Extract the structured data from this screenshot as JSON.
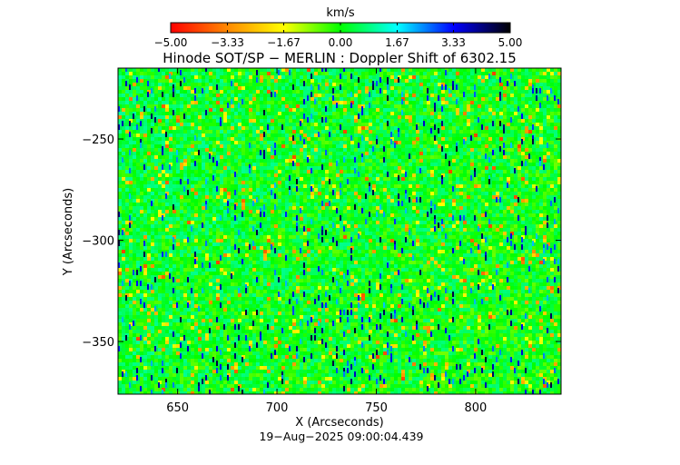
{
  "chart_data": {
    "type": "heatmap",
    "title": "Hinode SOT/SP − MERLIN : Doppler Shift of 6302.15",
    "xlabel": "X (Arcseconds)",
    "ylabel": "Y (Arcseconds)",
    "xlim": [
      620,
      843
    ],
    "ylim": [
      -376,
      -215
    ],
    "x_ticks": [
      650,
      700,
      750,
      800
    ],
    "x_tick_labels": [
      "650",
      "700",
      "750",
      "800"
    ],
    "y_ticks": [
      -250,
      -300,
      -350
    ],
    "y_tick_labels": [
      "−250",
      "−300",
      "−350"
    ],
    "colorbar": {
      "label": "km/s",
      "range": [
        -5.0,
        5.0
      ],
      "ticks": [
        -5.0,
        -3.33,
        -1.67,
        0.0,
        1.67,
        3.33,
        5.0
      ],
      "tick_labels": [
        "−5.00",
        "−3.33",
        "−1.67",
        "0.00",
        "1.67",
        "3.33",
        "5.00"
      ],
      "colors": [
        "#ff0000",
        "#ff8800",
        "#ffff00",
        "#00ff00",
        "#00ffff",
        "#0000ff",
        "#000000"
      ]
    },
    "value_distribution": {
      "dominant_range": [
        -1.0,
        1.0
      ],
      "dominant_color": "#00ee55",
      "scattered_values": "frequent small positive (blue) and negative (yellow/orange) streaks"
    },
    "timestamp": "19−Aug−2025 09:00:04.439"
  }
}
